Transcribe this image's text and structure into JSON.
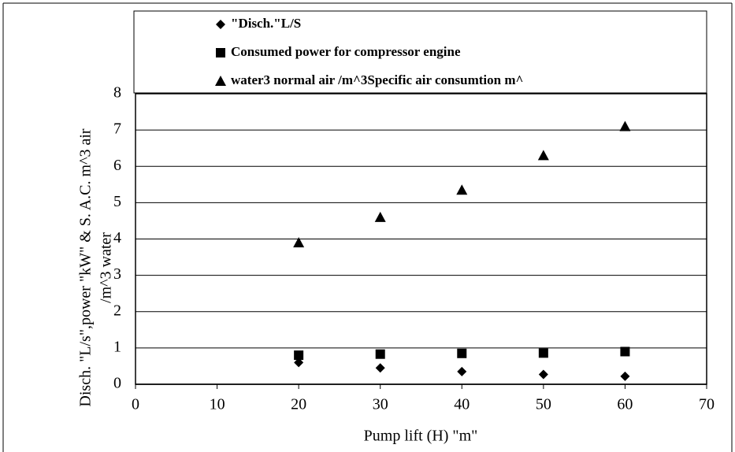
{
  "chart_data": {
    "type": "scatter",
    "xlabel": "Pump lift (H) \"m\"",
    "ylabel": [
      "Disch. \"L/s\",power \"kW\" & S. A.C. m^3 air",
      "/m^3 water"
    ],
    "xlim": [
      0,
      70
    ],
    "xticks": [
      0,
      10,
      20,
      30,
      40,
      50,
      60,
      70
    ],
    "ylim": [
      0,
      8
    ],
    "yticks": [
      0,
      1,
      2,
      3,
      4,
      5,
      6,
      7,
      8
    ],
    "grid": true,
    "legend": "top",
    "series": [
      {
        "name": "\"Disch.\"L/S",
        "color": "#000000",
        "marker": "diamond",
        "x": [
          20,
          30,
          40,
          50,
          60
        ],
        "values": [
          0.6,
          0.45,
          0.35,
          0.27,
          0.22
        ]
      },
      {
        "name": "Consumed power for compressor engine",
        "color": "#000000",
        "marker": "square",
        "x": [
          20,
          30,
          40,
          50,
          60
        ],
        "values": [
          0.8,
          0.83,
          0.85,
          0.86,
          0.9
        ]
      },
      {
        "name": "water3 normal air /m^3Specific air consumtion m^",
        "color": "#000000",
        "marker": "triangle",
        "x": [
          20,
          30,
          40,
          50,
          60
        ],
        "values": [
          3.9,
          4.6,
          5.35,
          6.3,
          7.1
        ]
      }
    ]
  }
}
